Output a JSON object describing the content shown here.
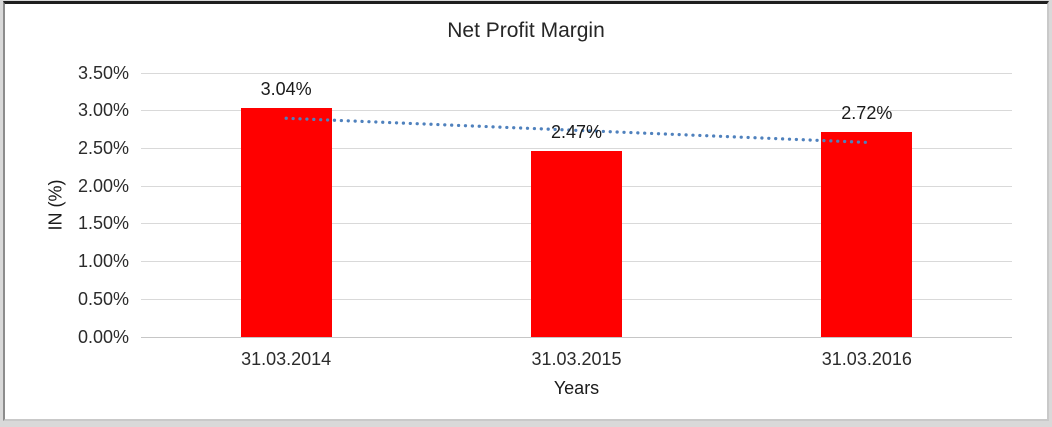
{
  "chart_data": {
    "type": "bar",
    "title": "Net Profit Margin",
    "xlabel": "Years",
    "ylabel": "IN (%)",
    "categories": [
      "31.03.2014",
      "31.03.2015",
      "31.03.2016"
    ],
    "values": [
      3.04,
      2.47,
      2.72
    ],
    "bar_labels": [
      "3.04%",
      "2.47%",
      "2.72%"
    ],
    "ylim": [
      0,
      3.5
    ],
    "ytick_step": 0.5,
    "ytick_labels": [
      "0.00%",
      "0.50%",
      "1.00%",
      "1.50%",
      "2.00%",
      "2.50%",
      "3.00%",
      "3.50%"
    ],
    "grid": true,
    "legend": false,
    "colors": {
      "bar": "#FF0000",
      "gridline": "#D9D9D9",
      "trendline": "#4F81BD",
      "text": "#262626",
      "background": "#FFFFFF"
    },
    "trendline": {
      "type": "linear",
      "style": "dotted",
      "color": "#4F81BD",
      "start_value": 2.9,
      "end_value": 2.58
    }
  }
}
